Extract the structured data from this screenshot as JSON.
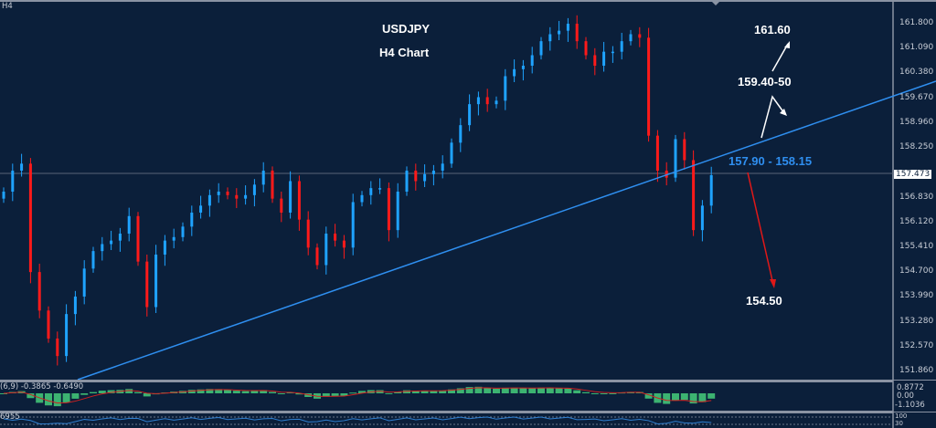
{
  "symbol_tag": "H4",
  "title": "USDJPY",
  "subtitle": "H4 Chart",
  "annotations": {
    "target_up": "161.60",
    "resistance": "159.40-50",
    "zone": "157.90 - 158.15",
    "target_down": "154.50"
  },
  "current_price": "157.473",
  "macd": {
    "label": "(6,9) -0.3865 -0.6490",
    "ticks": [
      "0.8772",
      "0.00",
      "-1.1036"
    ]
  },
  "lower_panel": {
    "label": "6955",
    "ticks": [
      "100",
      "30"
    ]
  },
  "colors": {
    "background": "#0b1f3a",
    "bull": "#1fa3ff",
    "bear": "#ff1a1a",
    "trendline": "#2f8ff0",
    "histogram": "#3cb371",
    "signal": "#d02020"
  },
  "chart_data": {
    "type": "candlestick",
    "title": "USDJPY",
    "subtitle": "H4 Chart",
    "timeframe": "H4",
    "ylim": [
      151.7,
      162.1
    ],
    "y_ticks": [
      "161.800",
      "161.090",
      "160.380",
      "159.670",
      "158.960",
      "158.250",
      "156.830",
      "156.120",
      "155.410",
      "154.700",
      "153.990",
      "153.280",
      "152.570",
      "151.860"
    ],
    "closes": [
      157.0,
      157.6,
      157.8,
      154.7,
      153.6,
      152.8,
      152.3,
      153.5,
      154.0,
      154.8,
      155.3,
      155.5,
      155.6,
      155.8,
      156.3,
      155.0,
      153.7,
      155.2,
      155.6,
      155.7,
      156.0,
      156.4,
      156.6,
      156.9,
      157.0,
      156.9,
      156.8,
      156.9,
      157.2,
      157.6,
      156.8,
      156.4,
      157.3,
      156.2,
      155.4,
      154.9,
      155.8,
      155.6,
      155.4,
      156.7,
      156.9,
      157.1,
      157.1,
      155.9,
      157.0,
      157.6,
      157.3,
      157.5,
      157.6,
      157.8,
      158.4,
      158.9,
      159.5,
      159.7,
      159.5,
      159.6,
      160.3,
      160.5,
      160.6,
      160.9,
      161.3,
      161.5,
      161.6,
      161.8,
      161.3,
      160.9,
      160.6,
      161.0,
      161.0,
      161.3,
      161.5,
      161.4,
      158.6,
      157.6,
      157.4,
      158.5,
      157.9,
      155.9,
      156.6,
      157.47
    ]
  }
}
